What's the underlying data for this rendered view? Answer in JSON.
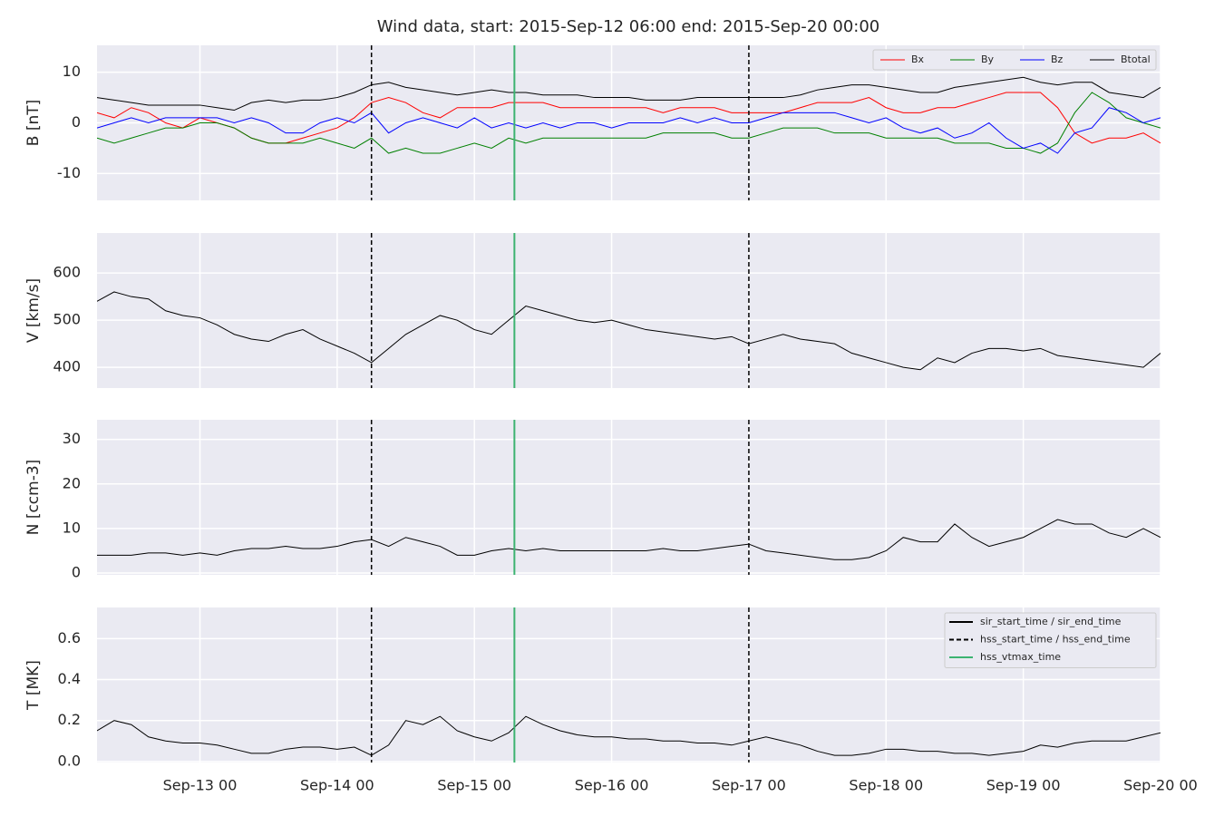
{
  "chart_data": {
    "type": "line",
    "title": "Wind data, start: 2015-Sep-12 06:00  end: 2015-Sep-20 00:00",
    "x": [
      "Sep-12 06",
      "Sep-12 09",
      "Sep-12 12",
      "Sep-12 15",
      "Sep-12 18",
      "Sep-12 21",
      "Sep-13 00",
      "Sep-13 03",
      "Sep-13 06",
      "Sep-13 09",
      "Sep-13 12",
      "Sep-13 15",
      "Sep-13 18",
      "Sep-13 21",
      "Sep-14 00",
      "Sep-14 03",
      "Sep-14 06",
      "Sep-14 09",
      "Sep-14 12",
      "Sep-14 15",
      "Sep-14 18",
      "Sep-14 21",
      "Sep-15 00",
      "Sep-15 03",
      "Sep-15 06",
      "Sep-15 09",
      "Sep-15 12",
      "Sep-15 15",
      "Sep-15 18",
      "Sep-15 21",
      "Sep-16 00",
      "Sep-16 03",
      "Sep-16 06",
      "Sep-16 09",
      "Sep-16 12",
      "Sep-16 15",
      "Sep-16 18",
      "Sep-16 21",
      "Sep-17 00",
      "Sep-17 03",
      "Sep-17 06",
      "Sep-17 09",
      "Sep-17 12",
      "Sep-17 15",
      "Sep-17 18",
      "Sep-17 21",
      "Sep-18 00",
      "Sep-18 03",
      "Sep-18 06",
      "Sep-18 09",
      "Sep-18 12",
      "Sep-18 15",
      "Sep-18 18",
      "Sep-18 21",
      "Sep-19 00",
      "Sep-19 03",
      "Sep-19 06",
      "Sep-19 09",
      "Sep-19 12",
      "Sep-19 15",
      "Sep-19 18",
      "Sep-19 21",
      "Sep-20 00"
    ],
    "xlim": [
      "Sep-12 06",
      "Sep-20 00"
    ],
    "xticks": [
      "Sep-13 00",
      "Sep-14 00",
      "Sep-15 00",
      "Sep-16 00",
      "Sep-17 00",
      "Sep-18 00",
      "Sep-19 00",
      "Sep-20 00"
    ],
    "grid": true,
    "events": [
      {
        "name": "sir_start_time / sir_end_time",
        "color": "#000000",
        "style": "solid"
      },
      {
        "name": "hss_start_time / hss_end_time",
        "color": "#000000",
        "style": "dashed",
        "times": [
          "Sep-14 06",
          "Sep-17 00"
        ]
      },
      {
        "name": "hss_vtmax_time",
        "color": "#3cb371",
        "style": "solid",
        "times": [
          "Sep-15 07"
        ]
      }
    ],
    "panels": [
      {
        "ylabel": "B [nT]",
        "ylim": [
          -15.3,
          15.3
        ],
        "yticks": [
          -10,
          0,
          10
        ],
        "legend": "upper right",
        "series": [
          {
            "name": "Bx",
            "color": "#ff0000",
            "values": [
              2,
              1,
              3,
              2,
              0,
              -1,
              1,
              0,
              -1,
              -3,
              -4,
              -4,
              -3,
              -2,
              -1,
              1,
              4,
              5,
              4,
              2,
              1,
              3,
              3,
              3,
              4,
              4,
              4,
              3,
              3,
              3,
              3,
              3,
              3,
              2,
              3,
              3,
              3,
              2,
              2,
              2,
              2,
              3,
              4,
              4,
              4,
              5,
              3,
              2,
              2,
              3,
              3,
              4,
              5,
              6,
              6,
              6,
              3,
              -2,
              -4,
              -3,
              -3,
              -2,
              -4
            ]
          },
          {
            "name": "By",
            "color": "#008000",
            "values": [
              -3,
              -4,
              -3,
              -2,
              -1,
              -1,
              0,
              0,
              -1,
              -3,
              -4,
              -4,
              -4,
              -3,
              -4,
              -5,
              -3,
              -6,
              -5,
              -6,
              -6,
              -5,
              -4,
              -5,
              -3,
              -4,
              -3,
              -3,
              -3,
              -3,
              -3,
              -3,
              -3,
              -2,
              -2,
              -2,
              -2,
              -3,
              -3,
              -2,
              -1,
              -1,
              -1,
              -2,
              -2,
              -2,
              -3,
              -3,
              -3,
              -3,
              -4,
              -4,
              -4,
              -5,
              -5,
              -6,
              -4,
              2,
              6,
              4,
              1,
              0,
              -1
            ]
          },
          {
            "name": "Bz",
            "color": "#0000ff",
            "values": [
              -1,
              0,
              1,
              0,
              1,
              1,
              1,
              1,
              0,
              1,
              0,
              -2,
              -2,
              0,
              1,
              0,
              2,
              -2,
              0,
              1,
              0,
              -1,
              1,
              -1,
              0,
              -1,
              0,
              -1,
              0,
              0,
              -1,
              0,
              0,
              0,
              1,
              0,
              1,
              0,
              0,
              1,
              2,
              2,
              2,
              2,
              1,
              0,
              1,
              -1,
              -2,
              -1,
              -3,
              -2,
              0,
              -3,
              -5,
              -4,
              -6,
              -2,
              -1,
              3,
              2,
              0,
              1
            ]
          },
          {
            "name": "Btotal",
            "color": "#000000",
            "values": [
              5,
              4.5,
              4,
              3.5,
              3.5,
              3.5,
              3.5,
              3,
              2.5,
              4,
              4.5,
              4,
              4.5,
              4.5,
              5,
              6,
              7.5,
              8,
              7,
              6.5,
              6,
              5.5,
              6,
              6.5,
              6,
              6,
              5.5,
              5.5,
              5.5,
              5,
              5,
              5,
              4.5,
              4.5,
              4.5,
              5,
              5,
              5,
              5,
              5,
              5,
              5.5,
              6.5,
              7,
              7.5,
              7.5,
              7,
              6.5,
              6,
              6,
              7,
              7.5,
              8,
              8.5,
              9,
              8,
              7.5,
              8,
              8,
              6,
              5.5,
              5,
              7
            ]
          }
        ]
      },
      {
        "ylabel": "V [km/s]",
        "ylim": [
          356,
          685
        ],
        "yticks": [
          400,
          500,
          600
        ],
        "series": [
          {
            "color": "#000000",
            "values": [
              540,
              560,
              550,
              545,
              520,
              510,
              505,
              490,
              470,
              460,
              455,
              470,
              480,
              460,
              445,
              430,
              410,
              440,
              470,
              490,
              510,
              500,
              480,
              470,
              500,
              530,
              520,
              510,
              500,
              495,
              500,
              490,
              480,
              475,
              470,
              465,
              460,
              465,
              450,
              460,
              470,
              460,
              455,
              450,
              430,
              420,
              410,
              400,
              395,
              420,
              410,
              430,
              440,
              440,
              435,
              440,
              425,
              420,
              415,
              410,
              405,
              400,
              430
            ]
          }
        ]
      },
      {
        "ylabel": "N [ccm-3]",
        "ylim": [
          -0.4,
          34.4
        ],
        "yticks": [
          0,
          10,
          20,
          30
        ],
        "series": [
          {
            "color": "#000000",
            "values": [
              4,
              4,
              4,
              4.5,
              4.5,
              4,
              4.5,
              4,
              5,
              5.5,
              5.5,
              6,
              5.5,
              5.5,
              6,
              7,
              7.5,
              6,
              8,
              7,
              6,
              4,
              4,
              5,
              5.5,
              5,
              5.5,
              5,
              5,
              5,
              5,
              5,
              5,
              5.5,
              5,
              5,
              5.5,
              6,
              6.5,
              5,
              4.5,
              4,
              3.5,
              3,
              3,
              3.5,
              5,
              8,
              7,
              7,
              11,
              8,
              6,
              7,
              8,
              10,
              12,
              11,
              11,
              9,
              8,
              10,
              8
            ]
          }
        ]
      },
      {
        "ylabel": "T [MK]",
        "ylim": [
          -0.005,
          0.752
        ],
        "yticks": [
          {
            "value": 0,
            "label": "0.0"
          },
          {
            "value": 0.2,
            "label": "0.2"
          },
          {
            "value": 0.4,
            "label": "0.4"
          },
          {
            "value": 0.6,
            "label": "0.6"
          }
        ],
        "legend": "upper right",
        "series": [
          {
            "color": "#000000",
            "values": [
              0.15,
              0.2,
              0.18,
              0.12,
              0.1,
              0.09,
              0.09,
              0.08,
              0.06,
              0.04,
              0.04,
              0.06,
              0.07,
              0.07,
              0.06,
              0.07,
              0.03,
              0.08,
              0.2,
              0.18,
              0.22,
              0.15,
              0.12,
              0.1,
              0.14,
              0.22,
              0.18,
              0.15,
              0.13,
              0.12,
              0.12,
              0.11,
              0.11,
              0.1,
              0.1,
              0.09,
              0.09,
              0.08,
              0.1,
              0.12,
              0.1,
              0.08,
              0.05,
              0.03,
              0.03,
              0.04,
              0.06,
              0.06,
              0.05,
              0.05,
              0.04,
              0.04,
              0.03,
              0.04,
              0.05,
              0.08,
              0.07,
              0.09,
              0.1,
              0.1,
              0.1,
              0.12,
              0.14
            ]
          }
        ]
      }
    ]
  }
}
